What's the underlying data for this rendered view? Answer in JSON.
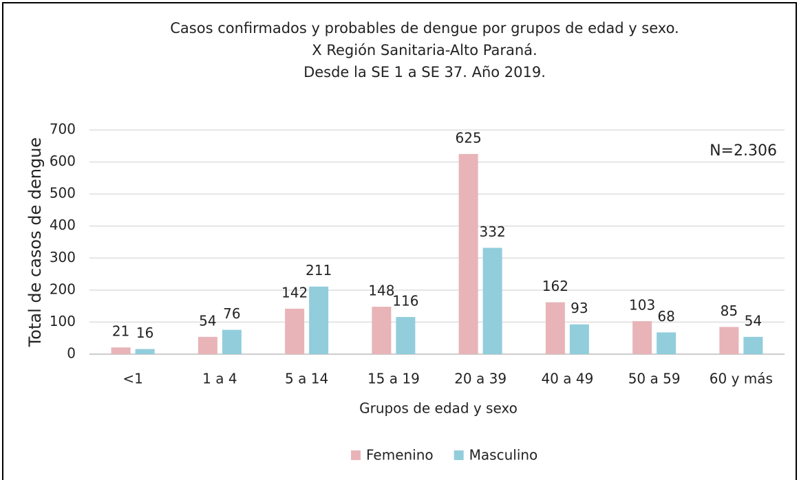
{
  "chart_data": {
    "type": "bar",
    "title": [
      "Casos confirmados y probables de dengue por grupos de edad y sexo.",
      "X Región Sanitaria-Alto Paraná.",
      "Desde la SE 1 a SE 37. Año 2019."
    ],
    "annotation": "N=2.306",
    "x_label": "Grupos de edad y sexo",
    "y_label": "Total de casos de dengue",
    "categories": [
      "<1",
      "1 a 4",
      "5 a 14",
      "15 a 19",
      "20 a 39",
      "40 a 49",
      "50 a 59",
      "60 y más"
    ],
    "series": [
      {
        "name": "Femenino",
        "color": "#e8b4b8",
        "values": [
          21,
          54,
          142,
          148,
          625,
          162,
          103,
          85
        ]
      },
      {
        "name": "Masculino",
        "color": "#92cddc",
        "values": [
          16,
          76,
          211,
          116,
          332,
          93,
          68,
          54
        ]
      }
    ],
    "ylim": [
      0,
      700
    ],
    "yticks": [
      0,
      100,
      200,
      300,
      400,
      500,
      600,
      700
    ],
    "grid": true,
    "legend": "bottom"
  }
}
